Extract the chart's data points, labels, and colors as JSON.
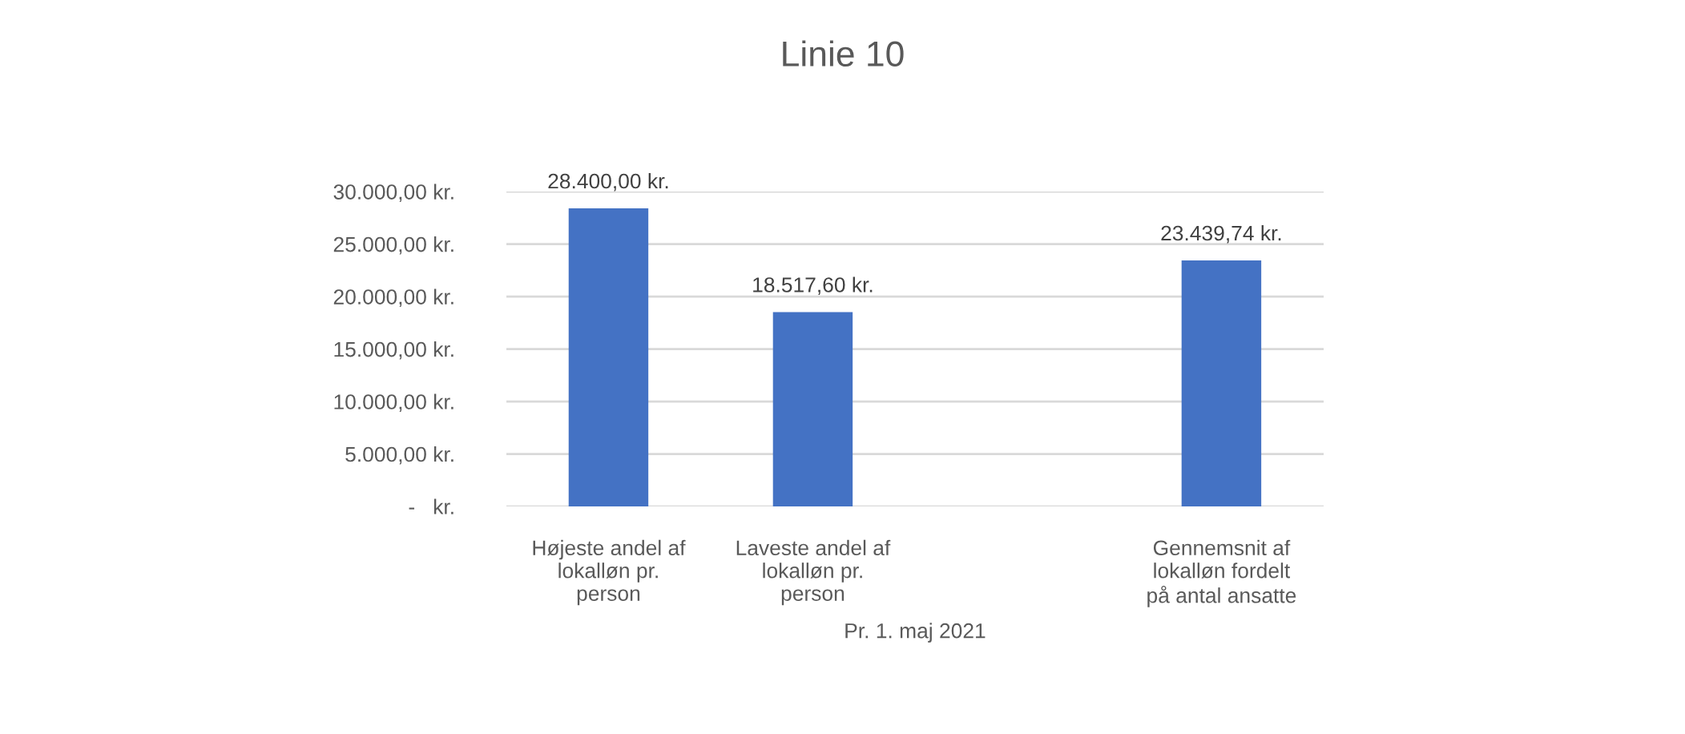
{
  "chart_data": {
    "type": "bar",
    "title": "Linie 10",
    "xlabel": "Pr. 1. maj 2021",
    "categories": [
      "Højeste andel af lokalløn pr. person",
      "Laveste andel af lokalløn pr. person",
      null,
      "Gennemsnit af lokalløn fordelt på antal ansatte"
    ],
    "values": [
      28400,
      18517.6,
      null,
      23439.74
    ],
    "color": "#4472c4",
    "value_labels": [
      "28.400,00 kr.",
      "18.517,60 kr.",
      null,
      "23.439,74 kr."
    ],
    "ylim": [
      0,
      30000
    ],
    "yticks": [
      {
        "value": 0,
        "label": "-   kr."
      },
      {
        "value": 5000,
        "label": "5.000,00 kr."
      },
      {
        "value": 10000,
        "label": "10.000,00 kr."
      },
      {
        "value": 15000,
        "label": "15.000,00 kr."
      },
      {
        "value": 20000,
        "label": "20.000,00 kr."
      },
      {
        "value": 25000,
        "label": "25.000,00 kr."
      },
      {
        "value": 30000,
        "label": "30.000,00 kr."
      }
    ],
    "grid": "y"
  }
}
